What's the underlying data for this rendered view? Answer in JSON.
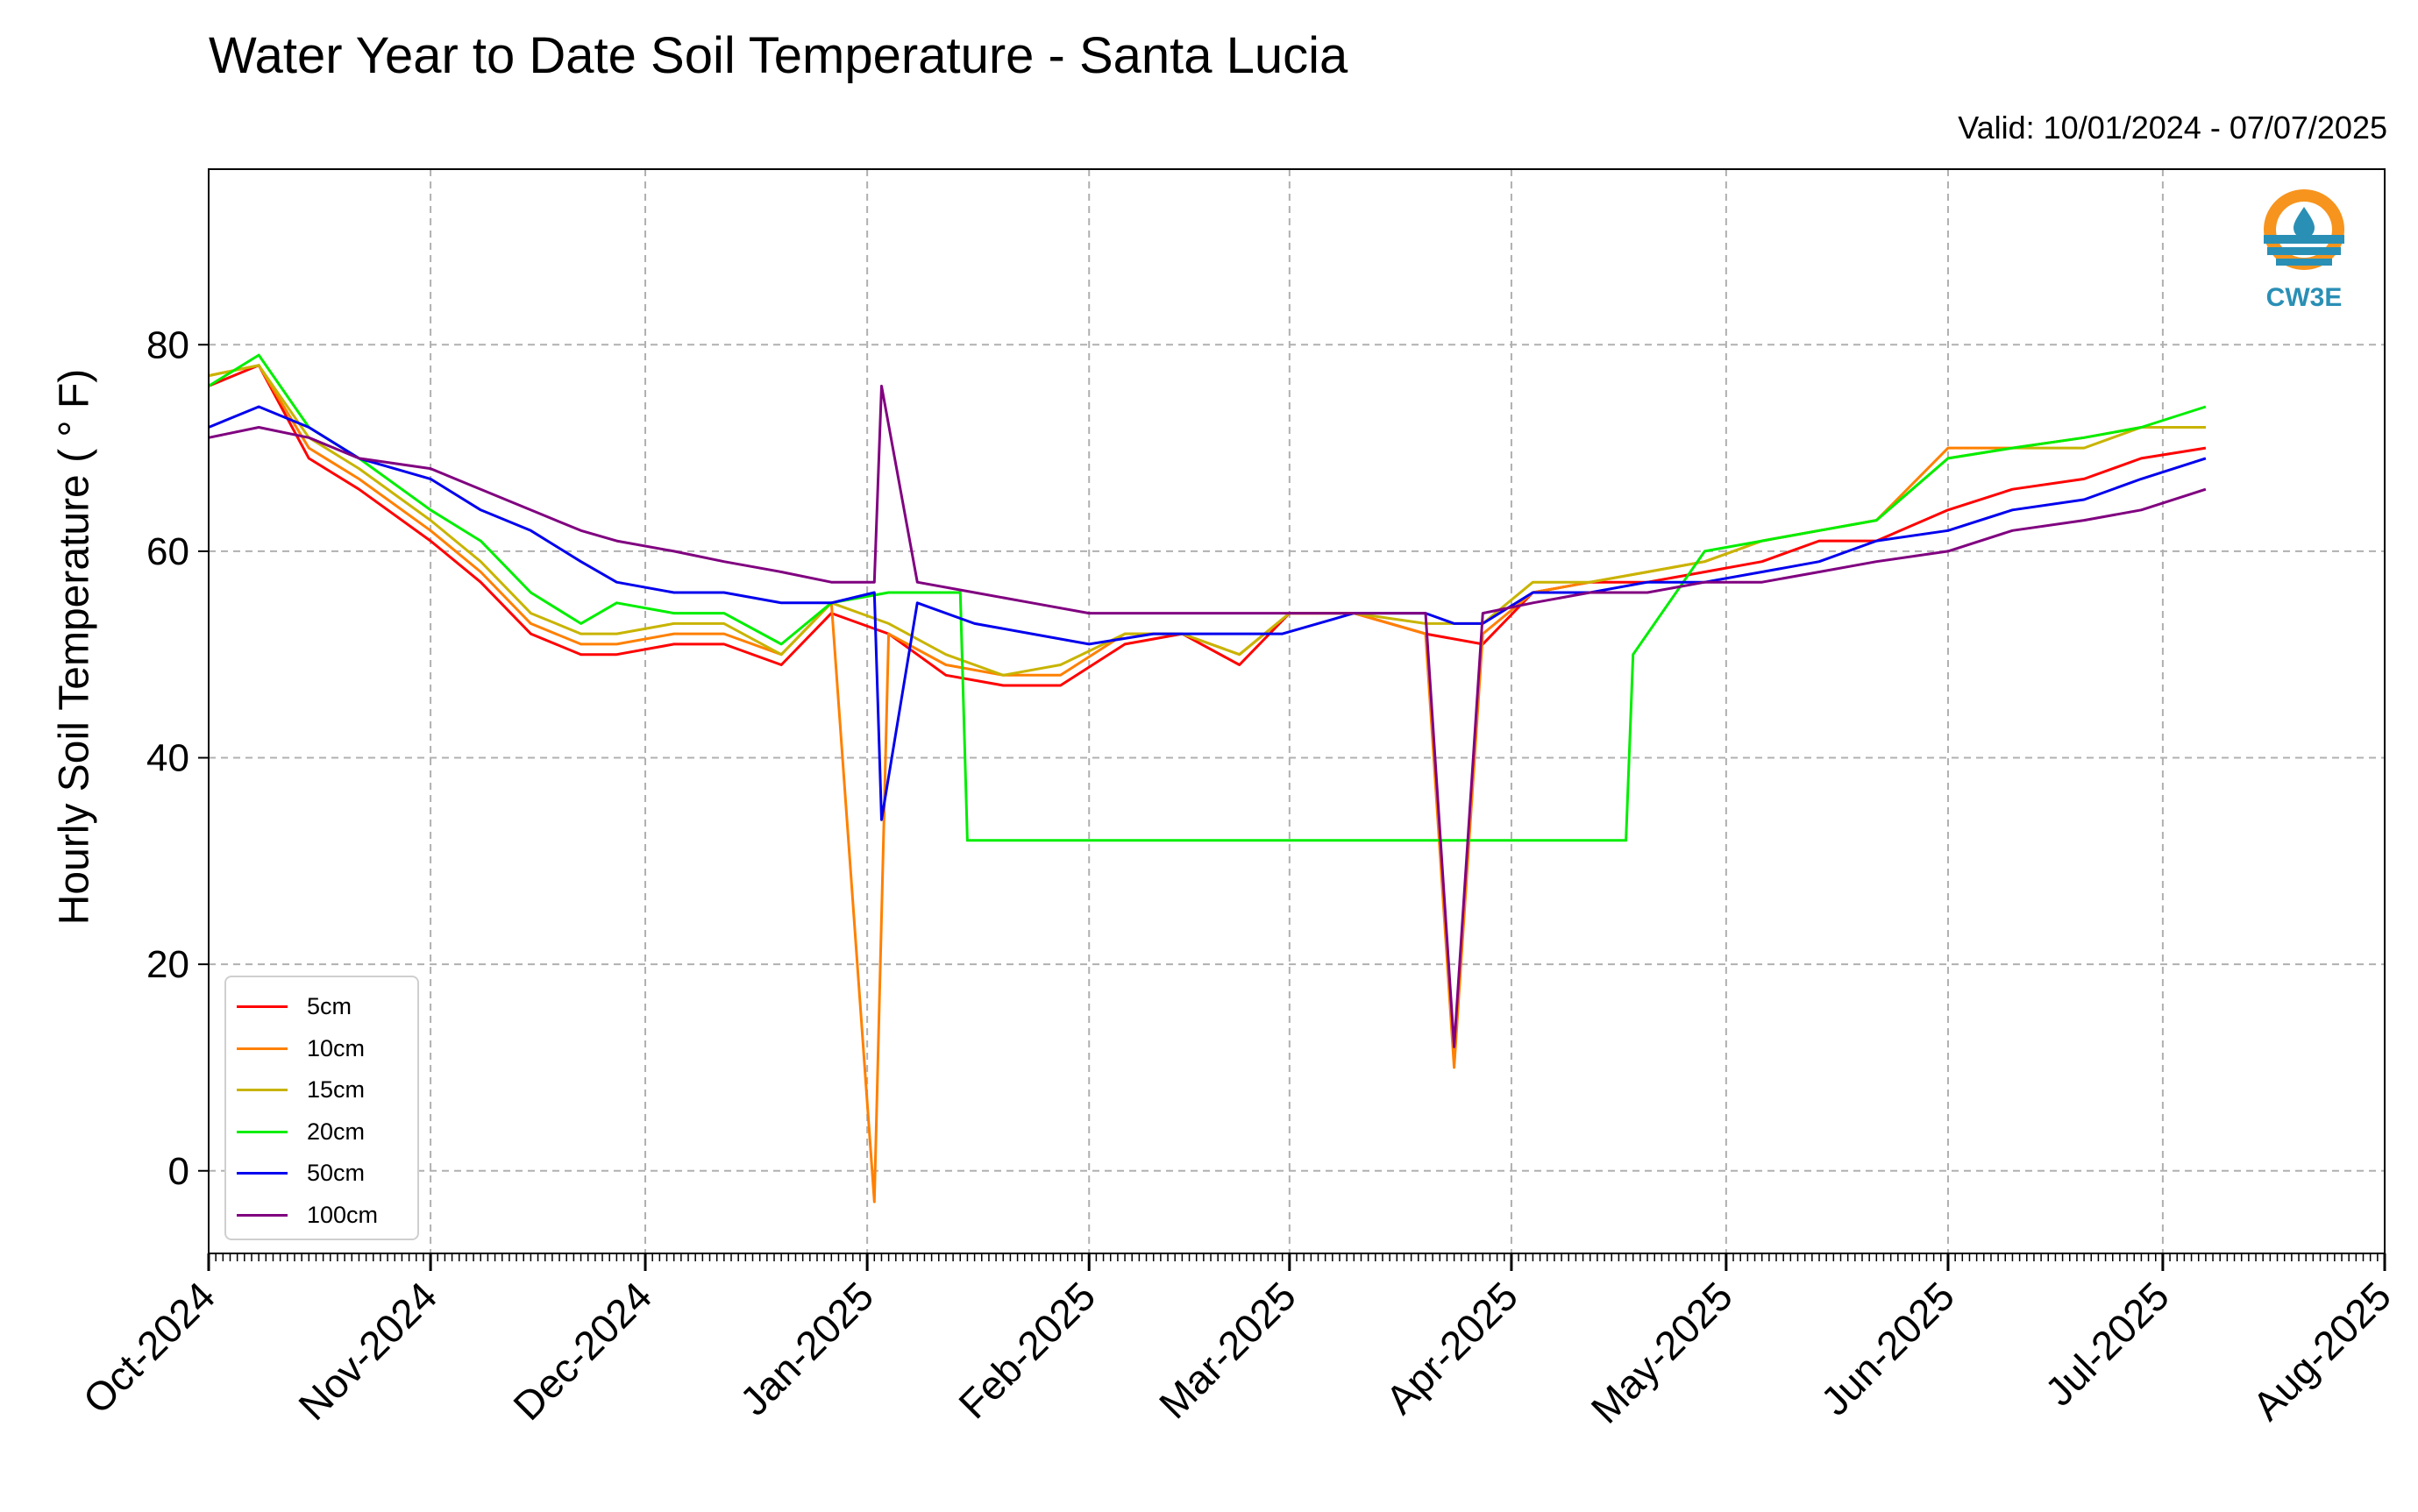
{
  "chart_data": {
    "type": "line",
    "title": "Water Year to Date Soil Temperature - Santa Lucia",
    "subtitle": "Valid: 10/01/2024 - 07/07/2025",
    "ylabel": "Hourly Soil Temperature ( ° F)",
    "xlabel": "",
    "xlim": [
      "2024-10-01",
      "2025-08-01"
    ],
    "ylim": [
      -8,
      97
    ],
    "grid": true,
    "legend_position": "lower-left",
    "x_ticks": [
      "Oct-2024",
      "Nov-2024",
      "Dec-2024",
      "Jan-2025",
      "Feb-2025",
      "Mar-2025",
      "Apr-2025",
      "May-2025",
      "Jun-2025",
      "Jul-2025",
      "Aug-2025"
    ],
    "x_tick_dates": [
      "2024-10-01",
      "2024-11-01",
      "2024-12-01",
      "2025-01-01",
      "2025-02-01",
      "2025-03-01",
      "2025-04-01",
      "2025-05-01",
      "2025-06-01",
      "2025-07-01",
      "2025-08-01"
    ],
    "y_ticks": [
      0,
      20,
      40,
      60,
      80
    ],
    "series": [
      {
        "name": "5cm",
        "color": "#ff0000",
        "x": [
          "2024-10-01",
          "2024-10-08",
          "2024-10-15",
          "2024-10-22",
          "2024-11-01",
          "2024-11-08",
          "2024-11-15",
          "2024-11-22",
          "2024-11-27",
          "2024-12-05",
          "2024-12-12",
          "2024-12-20",
          "2024-12-27",
          "2025-01-04",
          "2025-01-12",
          "2025-01-20",
          "2025-01-28",
          "2025-02-06",
          "2025-02-14",
          "2025-02-22",
          "2025-03-01",
          "2025-03-10",
          "2025-03-20",
          "2025-03-28",
          "2025-04-04",
          "2025-04-12",
          "2025-04-20",
          "2025-04-28",
          "2025-05-06",
          "2025-05-14",
          "2025-05-22",
          "2025-06-01",
          "2025-06-10",
          "2025-06-20",
          "2025-06-28",
          "2025-07-07"
        ],
        "y": [
          76,
          78,
          69,
          66,
          61,
          57,
          52,
          50,
          50,
          51,
          51,
          49,
          54,
          52,
          48,
          47,
          47,
          51,
          52,
          49,
          54,
          54,
          52,
          51,
          56,
          57,
          57,
          58,
          59,
          61,
          61,
          64,
          66,
          67,
          69,
          70
        ]
      },
      {
        "name": "10cm",
        "color": "#ff8000",
        "x": [
          "2024-10-01",
          "2024-10-08",
          "2024-10-15",
          "2024-10-22",
          "2024-11-01",
          "2024-11-08",
          "2024-11-15",
          "2024-11-22",
          "2024-11-27",
          "2024-12-05",
          "2024-12-12",
          "2024-12-20",
          "2024-12-27",
          "2025-01-02",
          "2025-01-04",
          "2025-01-12",
          "2025-01-20",
          "2025-01-28",
          "2025-02-06",
          "2025-02-14",
          "2025-02-22",
          "2025-03-01",
          "2025-03-10",
          "2025-03-20",
          "2025-03-24",
          "2025-03-28",
          "2025-04-04",
          "2025-04-12",
          "2025-04-20",
          "2025-04-28",
          "2025-05-06",
          "2025-05-14",
          "2025-05-22",
          "2025-06-01",
          "2025-06-10",
          "2025-06-20",
          "2025-06-28",
          "2025-07-07"
        ],
        "y": [
          77,
          78,
          70,
          67,
          62,
          58,
          53,
          51,
          51,
          52,
          52,
          50,
          55,
          -3,
          52,
          49,
          48,
          48,
          52,
          52,
          50,
          54,
          54,
          52,
          10,
          52,
          56,
          57,
          58,
          59,
          61,
          62,
          63,
          70,
          70,
          71,
          72,
          72
        ]
      },
      {
        "name": "15cm",
        "color": "#c8b400",
        "x": [
          "2024-10-01",
          "2024-10-08",
          "2024-10-15",
          "2024-10-22",
          "2024-11-01",
          "2024-11-08",
          "2024-11-15",
          "2024-11-22",
          "2024-11-27",
          "2024-12-05",
          "2024-12-12",
          "2024-12-20",
          "2024-12-27",
          "2025-01-04",
          "2025-01-12",
          "2025-01-20",
          "2025-01-28",
          "2025-02-06",
          "2025-02-14",
          "2025-02-22",
          "2025-03-01",
          "2025-03-10",
          "2025-03-20",
          "2025-03-28",
          "2025-04-04",
          "2025-04-12",
          "2025-04-20",
          "2025-04-28",
          "2025-05-06",
          "2025-05-14",
          "2025-05-22",
          "2025-06-01",
          "2025-06-10",
          "2025-06-20",
          "2025-06-28",
          "2025-07-07"
        ],
        "y": [
          77,
          78,
          71,
          68,
          63,
          59,
          54,
          52,
          52,
          53,
          53,
          50,
          55,
          53,
          50,
          48,
          49,
          52,
          52,
          50,
          54,
          54,
          53,
          53,
          57,
          57,
          58,
          59,
          61,
          62,
          63,
          69,
          70,
          70,
          72,
          72
        ]
      },
      {
        "name": "20cm",
        "color": "#00ee00",
        "x": [
          "2024-10-01",
          "2024-10-08",
          "2024-10-15",
          "2024-10-22",
          "2024-11-01",
          "2024-11-08",
          "2024-11-15",
          "2024-11-22",
          "2024-11-27",
          "2024-12-05",
          "2024-12-12",
          "2024-12-20",
          "2024-12-27",
          "2025-01-04",
          "2025-01-14",
          "2025-01-15",
          "2025-04-17",
          "2025-04-18",
          "2025-04-28",
          "2025-05-06",
          "2025-05-14",
          "2025-05-22",
          "2025-06-01",
          "2025-06-10",
          "2025-06-20",
          "2025-06-28",
          "2025-07-07"
        ],
        "y": [
          76,
          79,
          72,
          69,
          64,
          61,
          56,
          53,
          55,
          54,
          54,
          51,
          55,
          56,
          56,
          32,
          32,
          50,
          60,
          61,
          62,
          63,
          69,
          70,
          71,
          72,
          74
        ]
      },
      {
        "name": "50cm",
        "color": "#0000ee",
        "x": [
          "2024-10-01",
          "2024-10-08",
          "2024-10-15",
          "2024-10-22",
          "2024-11-01",
          "2024-11-08",
          "2024-11-15",
          "2024-11-22",
          "2024-11-27",
          "2024-12-05",
          "2024-12-12",
          "2024-12-20",
          "2024-12-27",
          "2025-01-02",
          "2025-01-03",
          "2025-01-08",
          "2025-01-16",
          "2025-01-24",
          "2025-02-01",
          "2025-02-10",
          "2025-02-18",
          "2025-02-28",
          "2025-03-10",
          "2025-03-20",
          "2025-03-24",
          "2025-03-28",
          "2025-04-04",
          "2025-04-12",
          "2025-04-20",
          "2025-04-28",
          "2025-05-06",
          "2025-05-14",
          "2025-05-22",
          "2025-06-01",
          "2025-06-10",
          "2025-06-20",
          "2025-06-28",
          "2025-07-07"
        ],
        "y": [
          72,
          74,
          72,
          69,
          67,
          64,
          62,
          59,
          57,
          56,
          56,
          55,
          55,
          56,
          34,
          55,
          53,
          52,
          51,
          52,
          52,
          52,
          54,
          54,
          53,
          53,
          56,
          56,
          57,
          57,
          58,
          59,
          61,
          62,
          64,
          65,
          67,
          69
        ]
      },
      {
        "name": "100cm",
        "color": "#800080",
        "x": [
          "2024-10-01",
          "2024-10-08",
          "2024-10-15",
          "2024-10-22",
          "2024-11-01",
          "2024-11-08",
          "2024-11-15",
          "2024-11-22",
          "2024-11-27",
          "2024-12-05",
          "2024-12-12",
          "2024-12-20",
          "2024-12-27",
          "2025-01-02",
          "2025-01-03",
          "2025-01-08",
          "2025-01-16",
          "2025-01-24",
          "2025-02-01",
          "2025-02-10",
          "2025-02-18",
          "2025-02-28",
          "2025-03-10",
          "2025-03-20",
          "2025-03-24",
          "2025-03-28",
          "2025-04-04",
          "2025-04-12",
          "2025-04-20",
          "2025-04-28",
          "2025-05-06",
          "2025-05-14",
          "2025-05-22",
          "2025-06-01",
          "2025-06-10",
          "2025-06-20",
          "2025-06-28",
          "2025-07-07"
        ],
        "y": [
          71,
          72,
          71,
          69,
          68,
          66,
          64,
          62,
          61,
          60,
          59,
          58,
          57,
          57,
          76,
          57,
          56,
          55,
          54,
          54,
          54,
          54,
          54,
          54,
          12,
          54,
          55,
          56,
          56,
          57,
          57,
          58,
          59,
          60,
          62,
          63,
          64,
          66
        ]
      }
    ]
  },
  "logo": {
    "text": "CW3E"
  }
}
